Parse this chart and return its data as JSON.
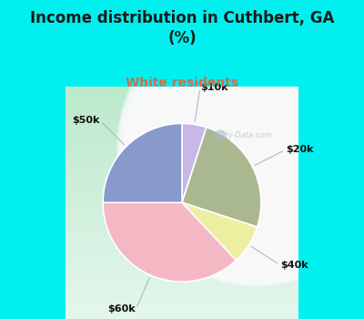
{
  "title": "Income distribution in Cuthbert, GA\n(%)",
  "subtitle": "White residents",
  "slices": [
    {
      "label": "$10k",
      "value": 5,
      "color": "#c8b8e8"
    },
    {
      "label": "$20k",
      "value": 25,
      "color": "#aab890"
    },
    {
      "label": "$40k",
      "value": 8,
      "color": "#eeeea0"
    },
    {
      "label": "$60k",
      "value": 37,
      "color": "#f4b8c4"
    },
    {
      "label": "$50k",
      "value": 25,
      "color": "#8899cc"
    }
  ],
  "title_fontsize": 12,
  "subtitle_fontsize": 10,
  "subtitle_color": "#c87050",
  "bg_top_color": "#00f0f0",
  "label_fontsize": 8,
  "watermark": "City-Data.com"
}
